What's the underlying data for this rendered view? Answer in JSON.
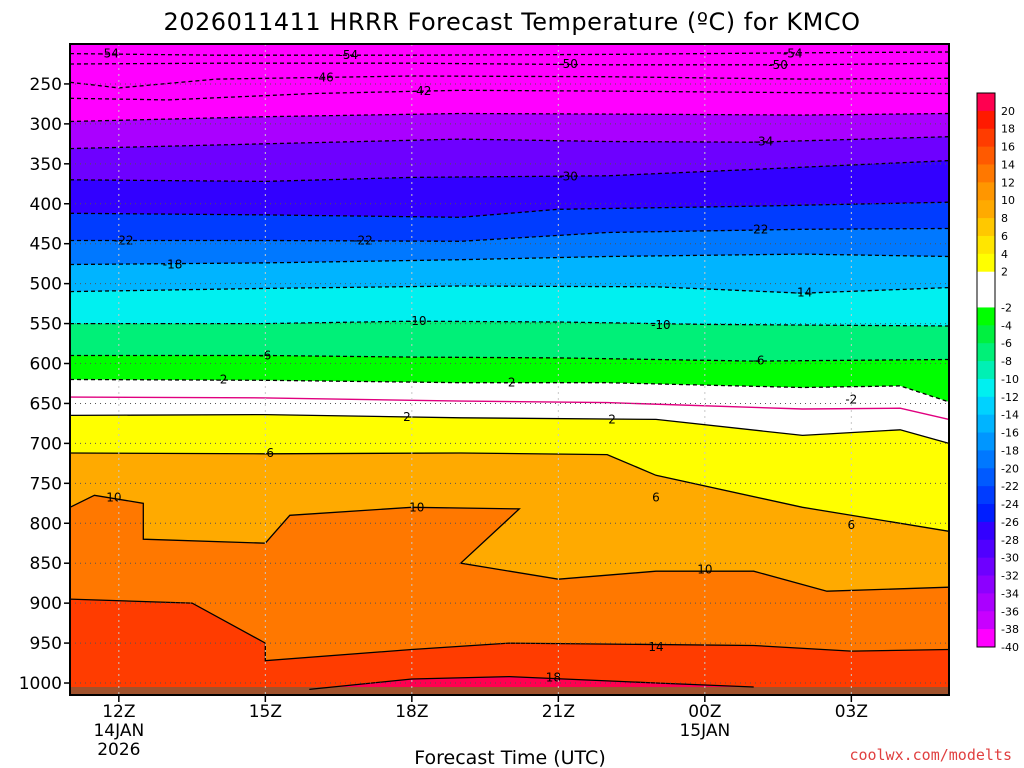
{
  "chart_data": {
    "type": "heatmap",
    "title": "2026011411 HRRR Forecast Temperature (ºC) for KMCO",
    "xlabel": "Forecast Time (UTC)",
    "credit": "coolwx.com/modelts",
    "colors": {
      "credit": "#e04040",
      "ground": "#a0522d",
      "freezing_line": "#e0007f"
    },
    "x_ticks": [
      {
        "label": "12Z",
        "sub1": "14JAN",
        "sub2": "2026",
        "hour": 0
      },
      {
        "label": "15Z",
        "sub1": "",
        "sub2": "",
        "hour": 3
      },
      {
        "label": "18Z",
        "sub1": "",
        "sub2": "",
        "hour": 6
      },
      {
        "label": "21Z",
        "sub1": "",
        "sub2": "",
        "hour": 9
      },
      {
        "label": "00Z",
        "sub1": "15JAN",
        "sub2": "",
        "hour": 12
      },
      {
        "label": "03Z",
        "sub1": "",
        "sub2": "",
        "hour": 15
      }
    ],
    "x_range_hours": [
      -1,
      17
    ],
    "y_ticks": [
      250,
      300,
      350,
      400,
      450,
      500,
      550,
      600,
      650,
      700,
      750,
      800,
      850,
      900,
      950,
      1000
    ],
    "y_range_hpa": [
      200,
      1015
    ],
    "colorbar": [
      {
        "label": "20",
        "color": "#ff0050"
      },
      {
        "label": "18",
        "color": "#ff1a00"
      },
      {
        "label": "16",
        "color": "#ff3c00"
      },
      {
        "label": "14",
        "color": "#ff5a00"
      },
      {
        "label": "12",
        "color": "#ff7800"
      },
      {
        "label": "10",
        "color": "#ff9600"
      },
      {
        "label": "8",
        "color": "#ffaa00"
      },
      {
        "label": "6",
        "color": "#ffc800"
      },
      {
        "label": "4",
        "color": "#ffe600"
      },
      {
        "label": "2",
        "color": "#ffff00"
      },
      {
        "label": "",
        "color": "#ffffff"
      },
      {
        "label": "-2",
        "color": "#ffffff"
      },
      {
        "label": "-4",
        "color": "#00ff00"
      },
      {
        "label": "-6",
        "color": "#00f040"
      },
      {
        "label": "-8",
        "color": "#00f078"
      },
      {
        "label": "-10",
        "color": "#00f0b4"
      },
      {
        "label": "-12",
        "color": "#00f0f0"
      },
      {
        "label": "-14",
        "color": "#00d2ff"
      },
      {
        "label": "-16",
        "color": "#00b4ff"
      },
      {
        "label": "-18",
        "color": "#0096ff"
      },
      {
        "label": "-20",
        "color": "#0078ff"
      },
      {
        "label": "-22",
        "color": "#005aff"
      },
      {
        "label": "-24",
        "color": "#003cff"
      },
      {
        "label": "-26",
        "color": "#001eff"
      },
      {
        "label": "-28",
        "color": "#3200ff"
      },
      {
        "label": "-30",
        "color": "#5000ff"
      },
      {
        "label": "-32",
        "color": "#6e00ff"
      },
      {
        "label": "-34",
        "color": "#8c00ff"
      },
      {
        "label": "-36",
        "color": "#aa00ff"
      },
      {
        "label": "-38",
        "color": "#c800ff"
      },
      {
        "label": "-40",
        "color": "#ff00ff"
      }
    ],
    "isotherms": [
      {
        "value": -54,
        "label": "-54",
        "dashed": true,
        "points": [
          [
            -1,
            212
          ],
          [
            2,
            214
          ],
          [
            6,
            214
          ],
          [
            10,
            213
          ],
          [
            14,
            211
          ],
          [
            17,
            210
          ]
        ],
        "labels": [
          [
            -0.2,
            212
          ],
          [
            4.7,
            214
          ],
          [
            13.8,
            212
          ]
        ]
      },
      {
        "value": -50,
        "label": "-50",
        "dashed": true,
        "points": [
          [
            -1,
            225
          ],
          [
            2,
            224
          ],
          [
            6,
            224
          ],
          [
            10,
            226
          ],
          [
            14,
            226
          ],
          [
            17,
            224
          ]
        ],
        "labels": [
          [
            9.2,
            225
          ],
          [
            13.5,
            226
          ]
        ]
      },
      {
        "value": -46,
        "label": "-46",
        "dashed": true,
        "points": [
          [
            -1,
            248
          ],
          [
            0,
            255
          ],
          [
            2,
            244
          ],
          [
            6,
            240
          ],
          [
            10,
            241
          ],
          [
            14,
            244
          ],
          [
            17,
            243
          ]
        ],
        "labels": [
          [
            4.2,
            242
          ]
        ]
      },
      {
        "value": -42,
        "label": "-42",
        "dashed": true,
        "points": [
          [
            -1,
            268
          ],
          [
            1,
            270
          ],
          [
            4,
            262
          ],
          [
            7,
            258
          ],
          [
            10,
            259
          ],
          [
            14,
            261
          ],
          [
            17,
            262
          ]
        ],
        "labels": [
          [
            6.2,
            259
          ]
        ]
      },
      {
        "value": -38,
        "label": "-38",
        "dashed": true,
        "points": [
          [
            -1,
            297
          ],
          [
            3,
            291
          ],
          [
            7,
            287
          ],
          [
            11,
            288
          ],
          [
            14,
            289
          ],
          [
            17,
            287
          ]
        ],
        "labels": []
      },
      {
        "value": -34,
        "label": "-34",
        "dashed": true,
        "points": [
          [
            -1,
            331
          ],
          [
            3,
            325
          ],
          [
            7,
            319
          ],
          [
            10,
            322
          ],
          [
            13,
            323
          ],
          [
            17,
            316
          ]
        ],
        "labels": [
          [
            13.2,
            322
          ]
        ]
      },
      {
        "value": -30,
        "label": "-30",
        "dashed": true,
        "points": [
          [
            -1,
            370
          ],
          [
            3,
            372
          ],
          [
            6,
            367
          ],
          [
            10,
            365
          ],
          [
            13,
            357
          ],
          [
            17,
            346
          ]
        ],
        "labels": [
          [
            9.2,
            366
          ]
        ]
      },
      {
        "value": -26,
        "label": "-26",
        "dashed": true,
        "points": [
          [
            -1,
            412
          ],
          [
            3,
            414
          ],
          [
            7,
            417
          ],
          [
            9,
            407
          ],
          [
            13,
            403
          ],
          [
            17,
            398
          ]
        ],
        "labels": []
      },
      {
        "value": -22,
        "label": "-22",
        "dashed": true,
        "points": [
          [
            -1,
            446
          ],
          [
            3,
            446
          ],
          [
            7,
            447
          ],
          [
            10,
            436
          ],
          [
            14,
            432
          ],
          [
            17,
            431
          ]
        ],
        "labels": [
          [
            0.1,
            446
          ],
          [
            5.0,
            446
          ],
          [
            13.1,
            432
          ]
        ]
      },
      {
        "value": -18,
        "label": "-18",
        "dashed": true,
        "points": [
          [
            -1,
            476
          ],
          [
            3,
            474
          ],
          [
            7,
            470
          ],
          [
            10,
            466
          ],
          [
            14,
            463
          ],
          [
            17,
            466
          ]
        ],
        "labels": [
          [
            1.1,
            476
          ]
        ]
      },
      {
        "value": -14,
        "label": "-14",
        "dashed": true,
        "points": [
          [
            -1,
            510
          ],
          [
            3,
            506
          ],
          [
            7,
            503
          ],
          [
            11,
            504
          ],
          [
            14,
            512
          ],
          [
            17,
            505
          ]
        ],
        "labels": [
          [
            14.0,
            511
          ]
        ]
      },
      {
        "value": -10,
        "label": "-10",
        "dashed": true,
        "points": [
          [
            -1,
            550
          ],
          [
            3,
            550
          ],
          [
            6,
            547
          ],
          [
            9,
            548
          ],
          [
            12,
            551
          ],
          [
            17,
            553
          ]
        ],
        "labels": [
          [
            6.1,
            547
          ],
          [
            11.1,
            552
          ]
        ]
      },
      {
        "value": -6,
        "label": "-6",
        "dashed": true,
        "points": [
          [
            -1,
            590
          ],
          [
            3,
            590
          ],
          [
            6,
            592
          ],
          [
            9,
            593
          ],
          [
            13,
            597
          ],
          [
            17,
            595
          ]
        ],
        "labels": [
          [
            3.0,
            590
          ],
          [
            13.1,
            596
          ]
        ]
      },
      {
        "value": -2,
        "label": "-2",
        "dashed": true,
        "points": [
          [
            -1,
            620
          ],
          [
            3,
            621
          ],
          [
            7,
            624
          ],
          [
            10,
            624
          ],
          [
            14,
            630
          ],
          [
            16,
            628
          ],
          [
            17,
            648
          ]
        ],
        "labels": [
          [
            2.1,
            620
          ],
          [
            8.0,
            624
          ],
          [
            15.0,
            645
          ]
        ]
      },
      {
        "value": 0,
        "label": "",
        "dashed": false,
        "freezing": true,
        "points": [
          [
            -1,
            642
          ],
          [
            3,
            643
          ],
          [
            7,
            647
          ],
          [
            10,
            649
          ],
          [
            14,
            657
          ],
          [
            16,
            656
          ],
          [
            17,
            670
          ]
        ],
        "labels": []
      },
      {
        "value": 2,
        "label": "2",
        "dashed": false,
        "points": [
          [
            -1,
            665
          ],
          [
            3,
            664
          ],
          [
            7,
            668
          ],
          [
            11,
            670
          ],
          [
            14,
            690
          ],
          [
            16,
            683
          ],
          [
            17,
            700
          ]
        ],
        "labels": [
          [
            5.9,
            667
          ],
          [
            10.1,
            670
          ]
        ]
      },
      {
        "value": 6,
        "label": "6",
        "dashed": false,
        "points": [
          [
            -1,
            712
          ],
          [
            3,
            713
          ],
          [
            7,
            712
          ],
          [
            10,
            714
          ],
          [
            11,
            740
          ],
          [
            14,
            780
          ],
          [
            17,
            810
          ]
        ],
        "labels": [
          [
            3.1,
            712
          ],
          [
            11.0,
            768
          ],
          [
            15.0,
            802
          ]
        ]
      },
      {
        "value": 10,
        "label": "10",
        "dashed": false,
        "points": [
          [
            -1,
            780
          ],
          [
            -0.5,
            765
          ],
          [
            0.5,
            775
          ],
          [
            0.5,
            820
          ],
          [
            3,
            825
          ],
          [
            3.5,
            790
          ],
          [
            6,
            780
          ],
          [
            8.2,
            782
          ],
          [
            7,
            850
          ],
          [
            9,
            870
          ],
          [
            11,
            860
          ],
          [
            13,
            860
          ],
          [
            14.5,
            885
          ],
          [
            16,
            882
          ],
          [
            17,
            880
          ]
        ],
        "labels": [
          [
            -0.1,
            768
          ],
          [
            6.1,
            780
          ],
          [
            12.0,
            858
          ]
        ]
      },
      {
        "value": 14,
        "label": "14",
        "dashed": false,
        "points": [
          [
            -1,
            895
          ],
          [
            1.5,
            900
          ],
          [
            3,
            950
          ],
          [
            3,
            972
          ],
          [
            6,
            958
          ],
          [
            8,
            950
          ],
          [
            13,
            953
          ],
          [
            15,
            960
          ],
          [
            17,
            958
          ]
        ],
        "labels": [
          [
            11.0,
            955
          ]
        ]
      },
      {
        "value": 18,
        "label": "18",
        "dashed": false,
        "points": [
          [
            3.9,
            1008
          ],
          [
            6,
            995
          ],
          [
            8,
            992
          ],
          [
            11,
            1000
          ],
          [
            13,
            1005
          ]
        ],
        "labels": [
          [
            8.9,
            993
          ]
        ]
      }
    ]
  }
}
